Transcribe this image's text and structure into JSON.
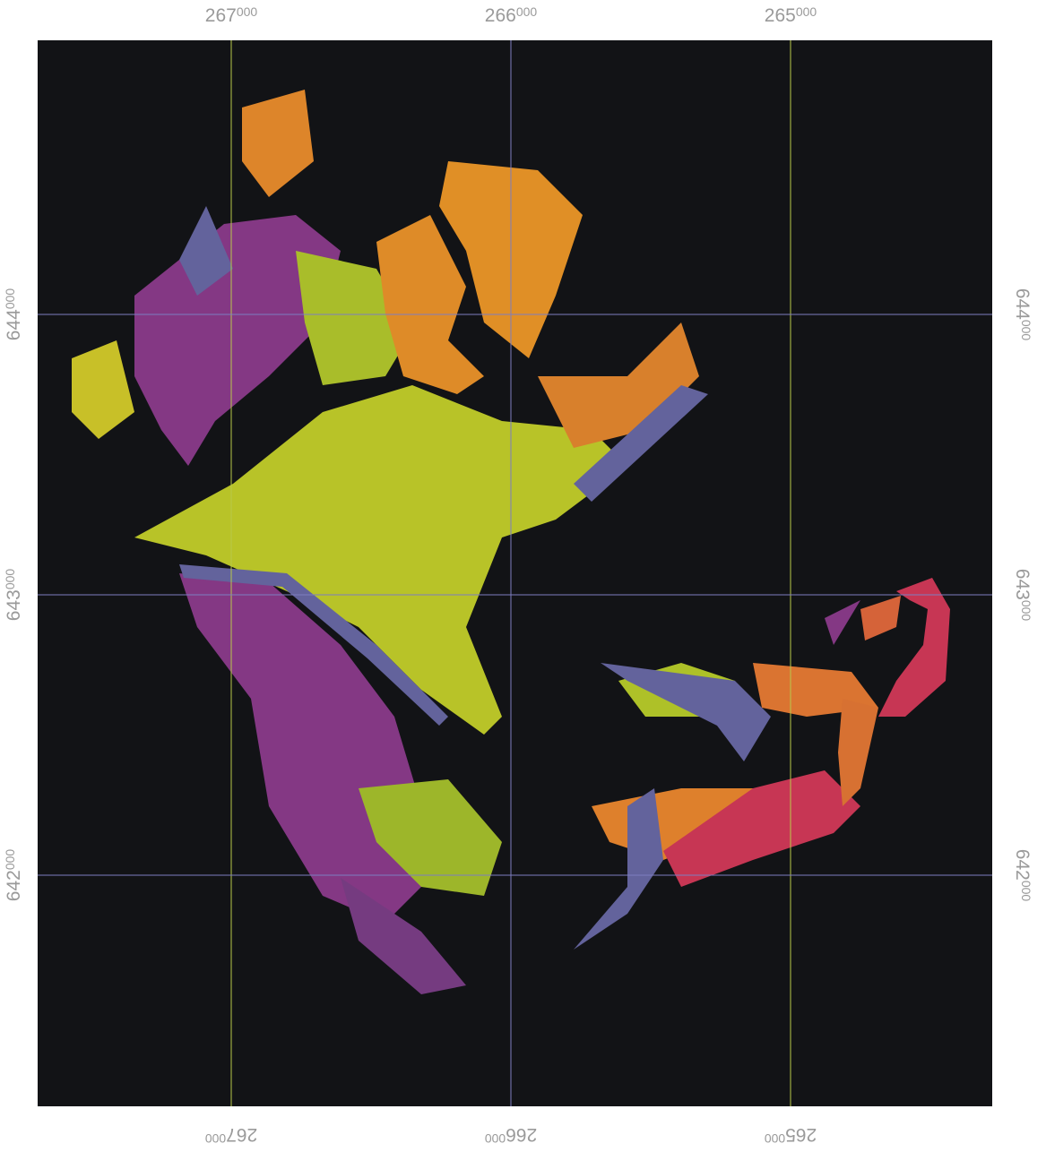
{
  "map": {
    "eastings": [
      {
        "main": "267",
        "small": "000"
      },
      {
        "main": "266",
        "small": "000"
      },
      {
        "main": "265",
        "small": "000"
      }
    ],
    "northings": [
      {
        "main": "644",
        "small": "000"
      },
      {
        "main": "643",
        "small": "000"
      },
      {
        "main": "642",
        "small": "000"
      }
    ]
  }
}
